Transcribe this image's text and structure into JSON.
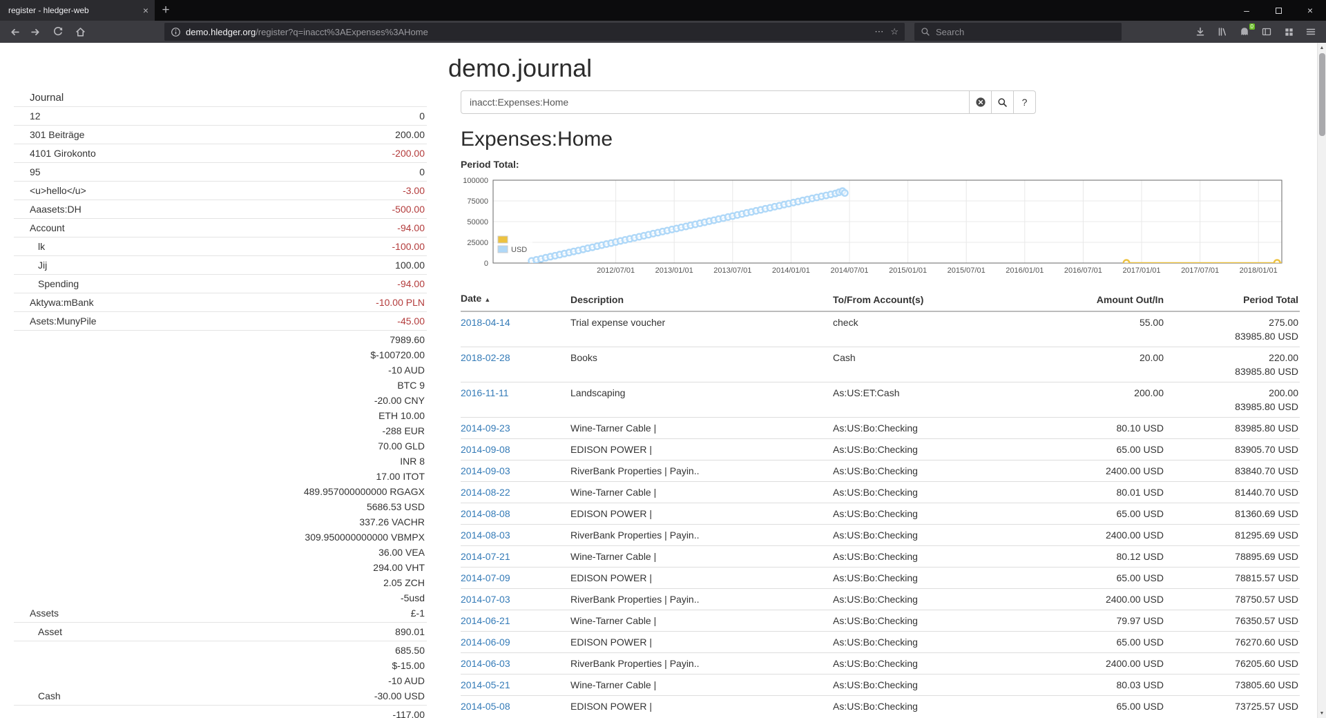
{
  "browser": {
    "tab_title": "register - hledger-web",
    "tab_close_icon": "×",
    "new_tab_icon": "+",
    "window_controls": {
      "minimize": "–",
      "close": "×"
    },
    "url": {
      "host": "demo.hledger.org",
      "path": "/register?q=inacct%3AExpenses%3AHome"
    },
    "page_actions_icon": "⋯",
    "bookmark_icon": "☆",
    "search_placeholder": "Search",
    "extension_badge": "0",
    "scrollbar": {
      "up": "▲",
      "down": "▼"
    }
  },
  "page": {
    "title": "demo.journal"
  },
  "sidebar": {
    "journal_label": "Journal",
    "rows": [
      {
        "name": "12",
        "indent": 1,
        "amounts": [
          {
            "text": "0"
          }
        ]
      },
      {
        "name": "301 Beiträge",
        "indent": 1,
        "amounts": [
          {
            "text": "200.00"
          }
        ]
      },
      {
        "name": "4101 Girokonto",
        "indent": 1,
        "amounts": [
          {
            "text": "-200.00",
            "neg": true
          }
        ]
      },
      {
        "name": "95",
        "indent": 1,
        "amounts": [
          {
            "text": "0"
          }
        ]
      },
      {
        "name": "<u>hello</u>",
        "indent": 1,
        "amounts": [
          {
            "text": "-3.00",
            "neg": true
          }
        ]
      },
      {
        "name": "Aaasets:DH",
        "indent": 1,
        "amounts": [
          {
            "text": "-500.00",
            "neg": true
          }
        ]
      },
      {
        "name": "Account",
        "indent": 1,
        "amounts": [
          {
            "text": "-94.00",
            "neg": true
          }
        ]
      },
      {
        "name": "lk",
        "indent": 2,
        "amounts": [
          {
            "text": "-100.00",
            "neg": true
          }
        ]
      },
      {
        "name": "Jij",
        "indent": 2,
        "amounts": [
          {
            "text": "100.00"
          }
        ]
      },
      {
        "name": "Spending",
        "indent": 2,
        "amounts": [
          {
            "text": "-94.00",
            "neg": true
          }
        ]
      },
      {
        "name": "Aktywa:mBank",
        "indent": 1,
        "amounts": [
          {
            "text": "-10.00 PLN",
            "neg": true
          }
        ]
      },
      {
        "name": "Asets:MunyPile",
        "indent": 1,
        "amounts": [
          {
            "text": "-45.00",
            "neg": true
          }
        ]
      },
      {
        "name": "Assets",
        "indent": 1,
        "amounts": [
          {
            "text": "7989.60"
          },
          {
            "text": "$-100720.00"
          },
          {
            "text": "-10 AUD"
          },
          {
            "text": "BTC 9"
          },
          {
            "text": "-20.00 CNY"
          },
          {
            "text": "ETH 10.00"
          },
          {
            "text": "-288 EUR"
          },
          {
            "text": "70.00 GLD"
          },
          {
            "text": "INR 8"
          },
          {
            "text": "17.00 ITOT"
          },
          {
            "text": "489.957000000000 RGAGX"
          },
          {
            "text": "5686.53 USD"
          },
          {
            "text": "337.26 VACHR"
          },
          {
            "text": "309.950000000000 VBMPX"
          },
          {
            "text": "36.00 VEA"
          },
          {
            "text": "294.00 VHT"
          },
          {
            "text": "2.05 ZCH"
          },
          {
            "text": "-5usd"
          },
          {
            "text": "£-1"
          }
        ]
      },
      {
        "name": "Asset",
        "indent": 2,
        "amounts": [
          {
            "text": "890.01"
          }
        ]
      },
      {
        "name": "Cash",
        "indent": 2,
        "amounts": [
          {
            "text": "685.50"
          },
          {
            "text": "$-15.00"
          },
          {
            "text": "-10 AUD"
          },
          {
            "text": "-30.00 USD"
          }
        ]
      },
      {
        "name": "",
        "indent": 2,
        "amounts": [
          {
            "text": "-117.00"
          }
        ]
      }
    ]
  },
  "query": {
    "value": "inacct:Expenses:Home",
    "help_label": "?"
  },
  "main": {
    "account_heading": "Expenses:Home",
    "period_total_label": "Period Total:"
  },
  "colors": {
    "negative": "#b33b3b",
    "link": "#337ab7",
    "series_other": "#edc240",
    "series_usd": "#afd8f8"
  },
  "chart_data": {
    "type": "scatter",
    "title": "Period Total:",
    "x_axis": {
      "min": 2011.45,
      "max": 2018.2,
      "tick_values": [
        2012.5,
        2013,
        2013.5,
        2014,
        2014.5,
        2015,
        2015.5,
        2016,
        2016.5,
        2017,
        2017.5,
        2018
      ],
      "tick_labels": [
        "2012/07/01",
        "2013/01/01",
        "2013/07/01",
        "2014/01/01",
        "2014/07/01",
        "2015/01/01",
        "2015/07/01",
        "2016/01/01",
        "2016/07/01",
        "2017/01/01",
        "2017/07/01",
        "2018/01/01"
      ]
    },
    "y_axis": {
      "min": 0,
      "max": 100000,
      "tick_values": [
        0,
        25000,
        50000,
        75000,
        100000
      ],
      "tick_labels": [
        "0",
        "25000",
        "50000",
        "75000",
        "100000"
      ]
    },
    "legend": [
      {
        "label": "",
        "color": "#edc240"
      },
      {
        "label": "USD",
        "color": "#afd8f8"
      }
    ],
    "grid": true,
    "series": [
      {
        "name": "",
        "color": "#edc240",
        "line_width": 2,
        "points": [
          [
            2016.87,
            200
          ],
          [
            2018.16,
            220
          ],
          [
            2018.28,
            275
          ]
        ]
      },
      {
        "name": "USD",
        "color": "#afd8f8",
        "line_width": 1,
        "points": [
          [
            2011.78,
            2600
          ],
          [
            2011.82,
            3800
          ],
          [
            2011.86,
            5000
          ],
          [
            2011.9,
            6400
          ],
          [
            2011.94,
            7700
          ],
          [
            2011.98,
            8800
          ],
          [
            2012.02,
            10200
          ],
          [
            2012.06,
            11400
          ],
          [
            2012.1,
            12700
          ],
          [
            2012.14,
            14000
          ],
          [
            2012.18,
            15100
          ],
          [
            2012.22,
            16500
          ],
          [
            2012.26,
            17800
          ],
          [
            2012.3,
            19000
          ],
          [
            2012.34,
            20300
          ],
          [
            2012.38,
            21600
          ],
          [
            2012.42,
            22900
          ],
          [
            2012.46,
            24100
          ],
          [
            2012.5,
            25300
          ],
          [
            2012.54,
            26700
          ],
          [
            2012.58,
            27900
          ],
          [
            2012.62,
            29200
          ],
          [
            2012.66,
            30400
          ],
          [
            2012.7,
            31700
          ],
          [
            2012.74,
            32900
          ],
          [
            2012.78,
            34200
          ],
          [
            2012.82,
            35500
          ],
          [
            2012.86,
            36700
          ],
          [
            2012.9,
            38000
          ],
          [
            2012.94,
            39200
          ],
          [
            2012.98,
            40500
          ],
          [
            2013.02,
            41700
          ],
          [
            2013.06,
            43000
          ],
          [
            2013.1,
            44200
          ],
          [
            2013.14,
            45500
          ],
          [
            2013.18,
            46700
          ],
          [
            2013.22,
            48000
          ],
          [
            2013.26,
            49200
          ],
          [
            2013.3,
            50500
          ],
          [
            2013.34,
            51700
          ],
          [
            2013.38,
            53000
          ],
          [
            2013.42,
            54200
          ],
          [
            2013.46,
            55500
          ],
          [
            2013.5,
            56700
          ],
          [
            2013.54,
            58000
          ],
          [
            2013.58,
            59200
          ],
          [
            2013.62,
            60500
          ],
          [
            2013.66,
            61700
          ],
          [
            2013.7,
            63000
          ],
          [
            2013.74,
            64200
          ],
          [
            2013.78,
            65500
          ],
          [
            2013.82,
            66700
          ],
          [
            2013.86,
            68000
          ],
          [
            2013.9,
            69200
          ],
          [
            2013.94,
            70500
          ],
          [
            2013.98,
            71700
          ],
          [
            2014.02,
            73000
          ],
          [
            2014.06,
            74200
          ],
          [
            2014.1,
            75500
          ],
          [
            2014.14,
            76700
          ],
          [
            2014.18,
            78000
          ],
          [
            2014.22,
            79200
          ],
          [
            2014.26,
            80400
          ],
          [
            2014.3,
            81600
          ],
          [
            2014.34,
            82800
          ],
          [
            2014.38,
            84000
          ],
          [
            2014.41,
            85400
          ],
          [
            2014.44,
            86800
          ],
          [
            2014.46,
            84600
          ]
        ]
      }
    ]
  },
  "register": {
    "columns": [
      "Date",
      "Description",
      "To/From Account(s)",
      "Amount Out/In",
      "Period Total"
    ],
    "sort_caret": "▲",
    "rows": [
      {
        "date": "2018-04-14",
        "description": "Trial expense voucher",
        "account": "check",
        "amount": "55.00",
        "period_total": [
          "275.00",
          "83985.80 USD"
        ]
      },
      {
        "date": "2018-02-28",
        "description": "Books",
        "account": "Cash",
        "amount": "20.00",
        "period_total": [
          "220.00",
          "83985.80 USD"
        ]
      },
      {
        "date": "2016-11-11",
        "description": "Landscaping",
        "account": "As:US:ET:Cash",
        "amount": "200.00",
        "period_total": [
          "200.00",
          "83985.80 USD"
        ]
      },
      {
        "date": "2014-09-23",
        "description": "Wine-Tarner Cable |",
        "account": "As:US:Bo:Checking",
        "amount": "80.10 USD",
        "period_total": [
          "83985.80 USD"
        ]
      },
      {
        "date": "2014-09-08",
        "description": "EDISON POWER |",
        "account": "As:US:Bo:Checking",
        "amount": "65.00 USD",
        "period_total": [
          "83905.70 USD"
        ]
      },
      {
        "date": "2014-09-03",
        "description": "RiverBank Properties | Payin..",
        "account": "As:US:Bo:Checking",
        "amount": "2400.00 USD",
        "period_total": [
          "83840.70 USD"
        ]
      },
      {
        "date": "2014-08-22",
        "description": "Wine-Tarner Cable |",
        "account": "As:US:Bo:Checking",
        "amount": "80.01 USD",
        "period_total": [
          "81440.70 USD"
        ]
      },
      {
        "date": "2014-08-08",
        "description": "EDISON POWER |",
        "account": "As:US:Bo:Checking",
        "amount": "65.00 USD",
        "period_total": [
          "81360.69 USD"
        ]
      },
      {
        "date": "2014-08-03",
        "description": "RiverBank Properties | Payin..",
        "account": "As:US:Bo:Checking",
        "amount": "2400.00 USD",
        "period_total": [
          "81295.69 USD"
        ]
      },
      {
        "date": "2014-07-21",
        "description": "Wine-Tarner Cable |",
        "account": "As:US:Bo:Checking",
        "amount": "80.12 USD",
        "period_total": [
          "78895.69 USD"
        ]
      },
      {
        "date": "2014-07-09",
        "description": "EDISON POWER |",
        "account": "As:US:Bo:Checking",
        "amount": "65.00 USD",
        "period_total": [
          "78815.57 USD"
        ]
      },
      {
        "date": "2014-07-03",
        "description": "RiverBank Properties | Payin..",
        "account": "As:US:Bo:Checking",
        "amount": "2400.00 USD",
        "period_total": [
          "78750.57 USD"
        ]
      },
      {
        "date": "2014-06-21",
        "description": "Wine-Tarner Cable |",
        "account": "As:US:Bo:Checking",
        "amount": "79.97 USD",
        "period_total": [
          "76350.57 USD"
        ]
      },
      {
        "date": "2014-06-09",
        "description": "EDISON POWER |",
        "account": "As:US:Bo:Checking",
        "amount": "65.00 USD",
        "period_total": [
          "76270.60 USD"
        ]
      },
      {
        "date": "2014-06-03",
        "description": "RiverBank Properties | Payin..",
        "account": "As:US:Bo:Checking",
        "amount": "2400.00 USD",
        "period_total": [
          "76205.60 USD"
        ]
      },
      {
        "date": "2014-05-21",
        "description": "Wine-Tarner Cable |",
        "account": "As:US:Bo:Checking",
        "amount": "80.03 USD",
        "period_total": [
          "73805.60 USD"
        ]
      },
      {
        "date": "2014-05-08",
        "description": "EDISON POWER |",
        "account": "As:US:Bo:Checking",
        "amount": "65.00 USD",
        "period_total": [
          "73725.57 USD"
        ]
      }
    ]
  }
}
